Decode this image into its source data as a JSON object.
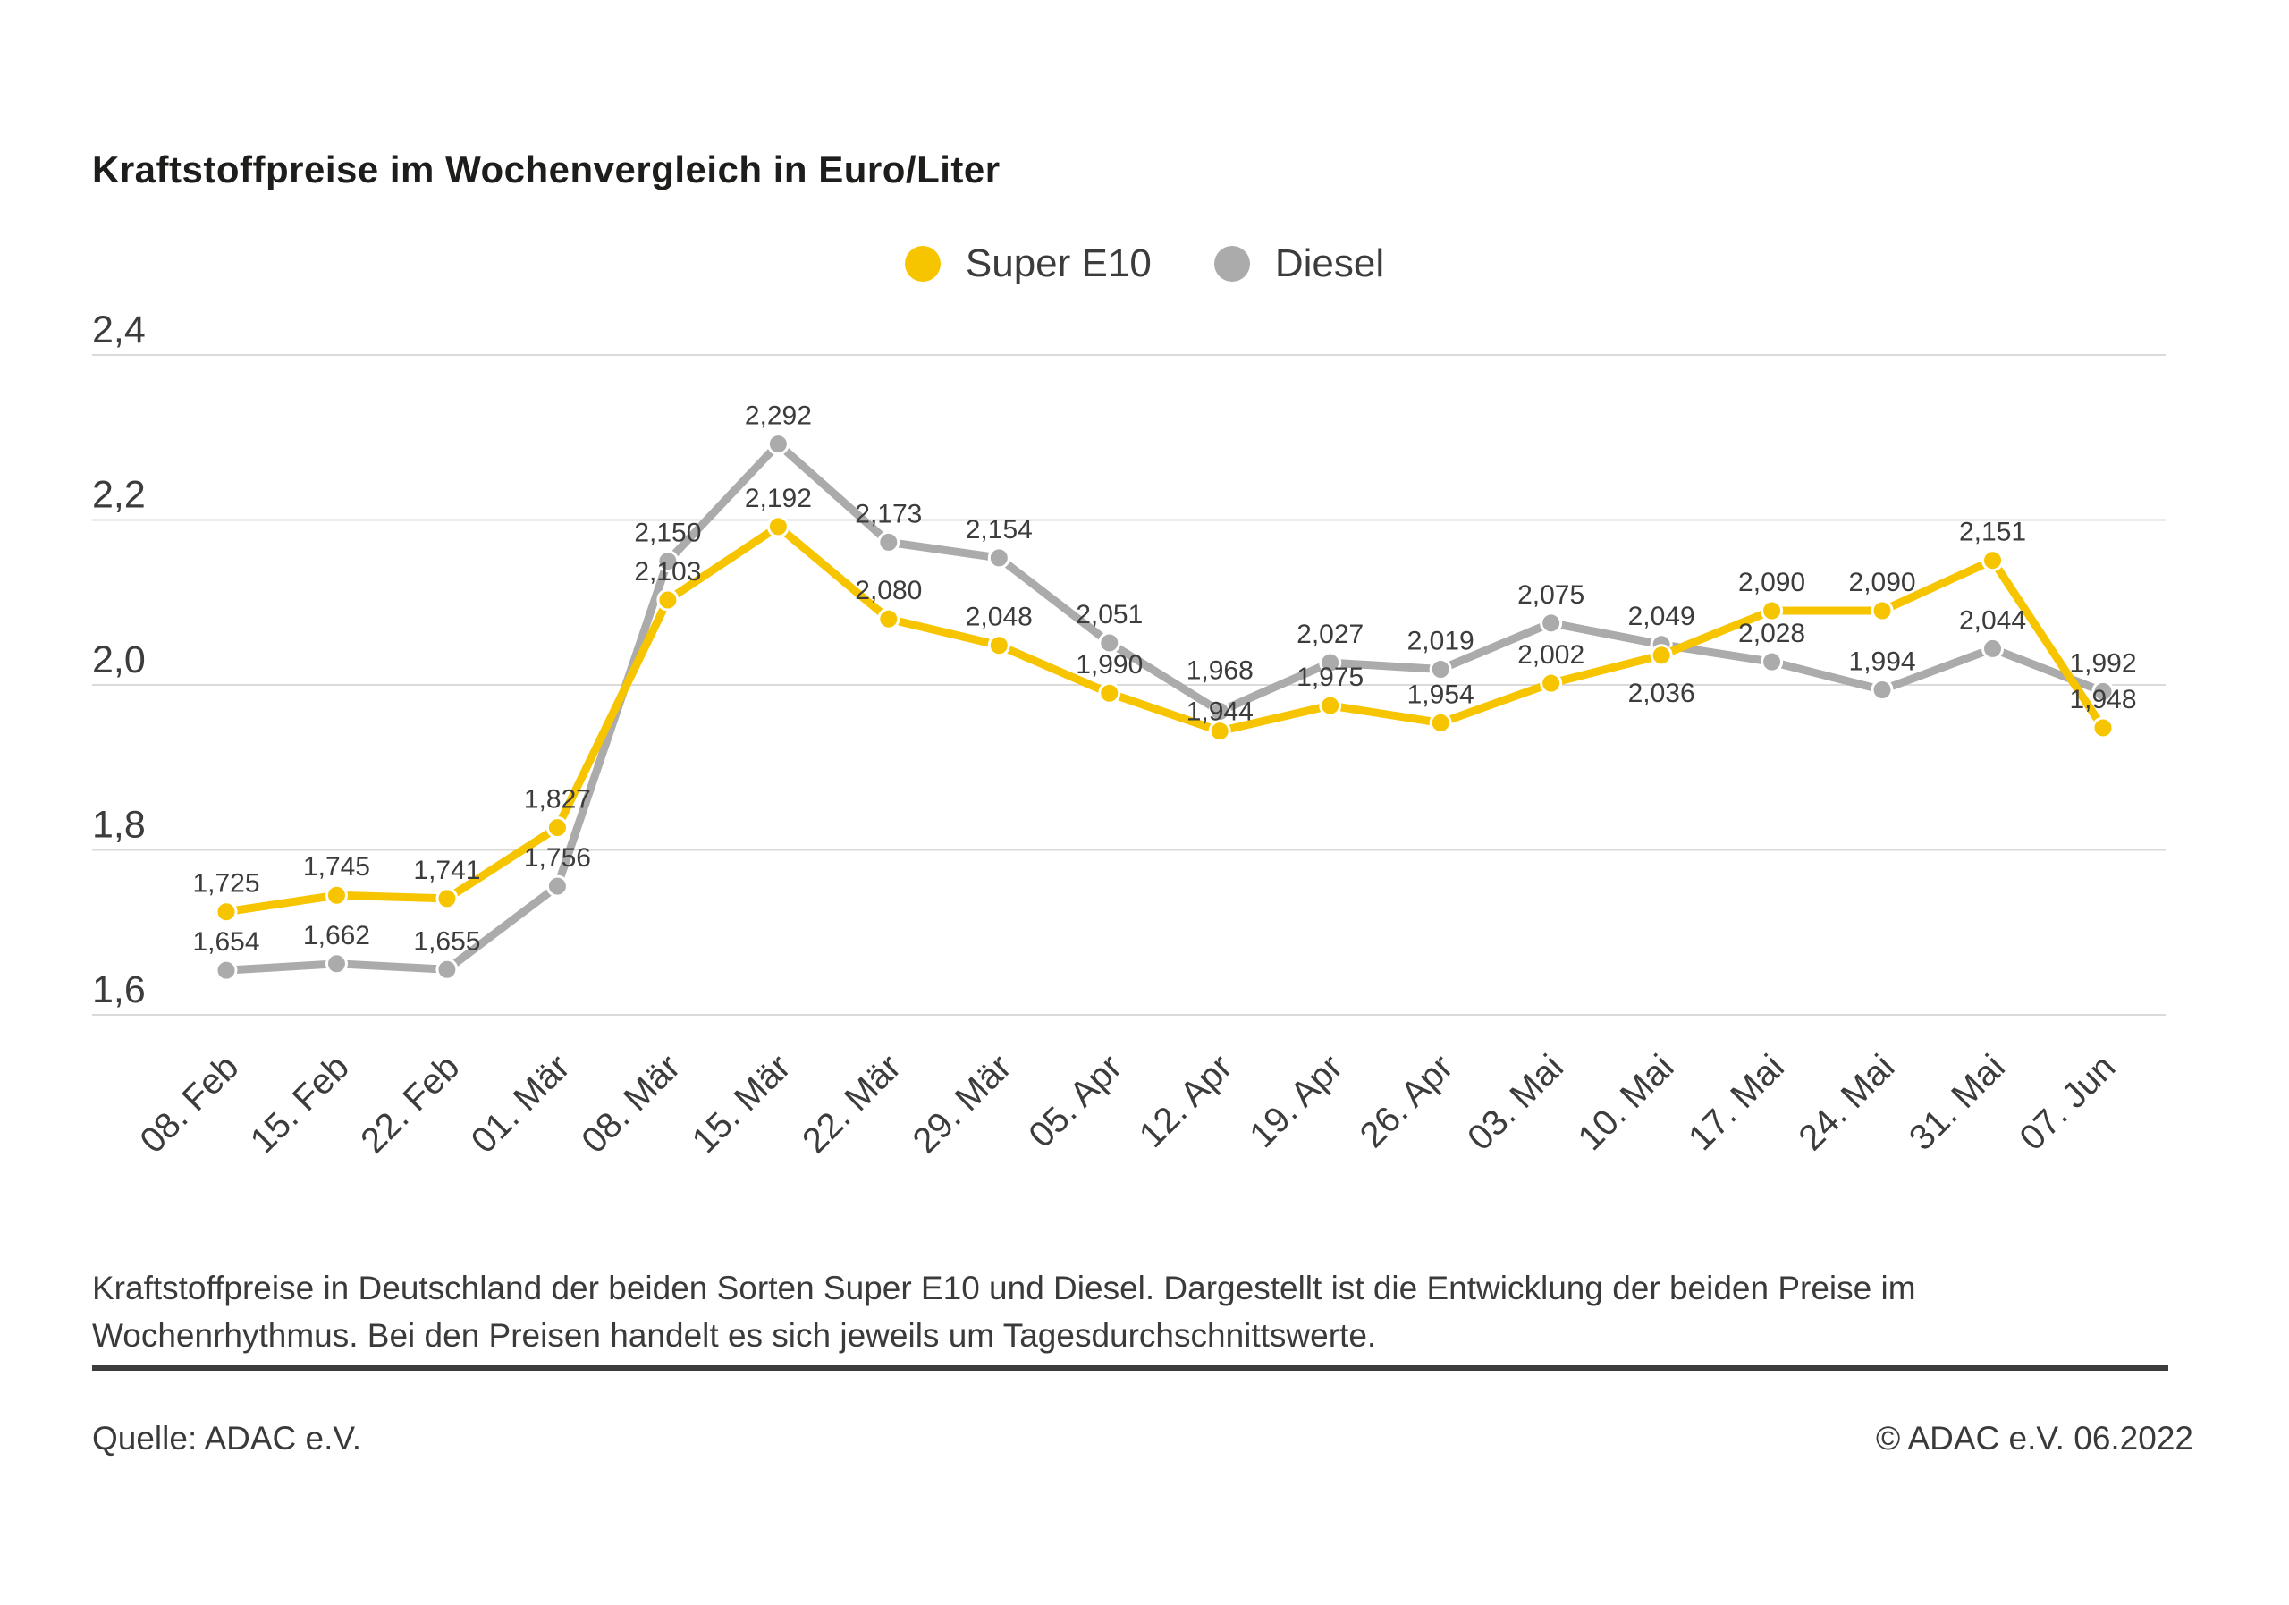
{
  "page": {
    "description": "Kraftstoffpreise in Deutschland der beiden Sorten Super E10 und Diesel. Dargestellt ist die Entwicklung der beiden Preise im Wochenrhythmus. Bei den Preisen handelt es sich jeweils um Tagesdurchschnittswerte.",
    "source": "Quelle: ADAC e.V.",
    "copyright": "© ADAC e.V. 06.2022"
  },
  "chart_data": {
    "type": "line",
    "title": "Kraftstoffpreise im Wochenvergleich in Euro/Liter",
    "xlabel": "",
    "ylabel": "",
    "unit": "Euro/Liter",
    "decimal_separator": ",",
    "grid": true,
    "legend_position": "top-center",
    "ylim": [
      1.6,
      2.4
    ],
    "yticks": [
      1.6,
      1.8,
      2.0,
      2.2,
      2.4
    ],
    "grid_color": "#dadada",
    "categories": [
      "08. Feb",
      "15. Feb",
      "22. Feb",
      "01. Mär",
      "08. Mär",
      "15. Mär",
      "22. Mär",
      "29. Mär",
      "05. Apr",
      "12. Apr",
      "19. Apr",
      "26. Apr",
      "03. Mai",
      "10. Mai",
      "17. Mai",
      "24. Mai",
      "31. Mai",
      "07. Jun"
    ],
    "series": [
      {
        "id": "super_e10",
        "name": "Super E10",
        "color": "#f7c500",
        "values": [
          1.725,
          1.745,
          1.741,
          1.827,
          2.103,
          2.192,
          2.08,
          2.048,
          1.99,
          1.944,
          1.975,
          1.954,
          2.002,
          2.036,
          2.09,
          2.09,
          2.151,
          1.948
        ]
      },
      {
        "id": "diesel",
        "name": "Diesel",
        "color": "#ababab",
        "values": [
          1.654,
          1.662,
          1.655,
          1.756,
          2.15,
          2.292,
          2.173,
          2.154,
          2.051,
          1.968,
          2.027,
          2.019,
          2.075,
          2.049,
          2.028,
          1.994,
          2.044,
          1.992
        ]
      }
    ],
    "label_dy": {
      "super_e10": {
        "9": -12,
        "13": 52
      },
      "diesel": {
        "9": -36
      }
    }
  }
}
